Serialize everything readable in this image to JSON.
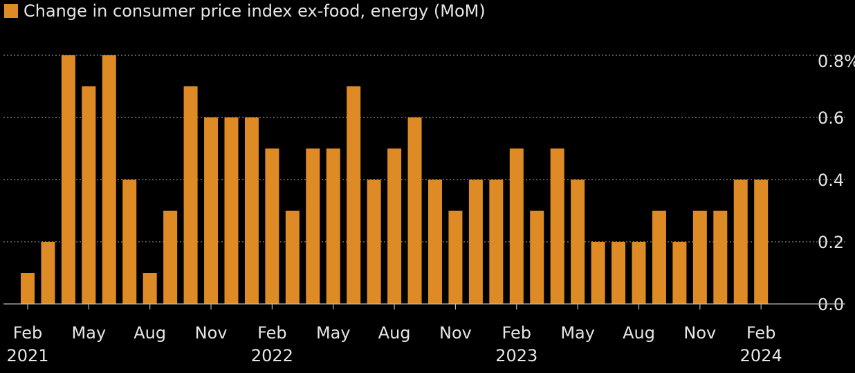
{
  "chart_data": {
    "type": "bar",
    "categories": [
      "Feb 2021",
      null,
      null,
      "May",
      null,
      null,
      "Aug",
      null,
      null,
      "Nov",
      null,
      null,
      "Feb 2022",
      null,
      null,
      "May",
      null,
      null,
      "Aug",
      null,
      null,
      "Nov",
      null,
      null,
      "Feb 2023",
      null,
      null,
      "May",
      null,
      null,
      "Aug",
      null,
      null,
      "Nov",
      null,
      null,
      "Feb 2024"
    ],
    "series": [
      {
        "name": "Change in consumer price index ex-food, energy (MoM)",
        "color": "#df8b25",
        "values": [
          0.1,
          0.2,
          0.8,
          0.7,
          0.8,
          0.4,
          0.1,
          0.3,
          0.7,
          0.6,
          0.6,
          0.6,
          0.5,
          0.3,
          0.5,
          0.5,
          0.7,
          0.4,
          0.5,
          0.6,
          0.4,
          0.3,
          0.4,
          0.4,
          0.5,
          0.3,
          0.5,
          0.4,
          0.2,
          0.2,
          0.2,
          0.3,
          0.2,
          0.3,
          0.3,
          0.4,
          0.4
        ]
      }
    ],
    "ylim": [
      0,
      0.8
    ],
    "yticks": [
      {
        "value": 0,
        "label": "0.0"
      },
      0.2,
      0.4,
      0.6,
      {
        "value": 0.8,
        "label": "0.8%"
      }
    ],
    "grid": true
  }
}
